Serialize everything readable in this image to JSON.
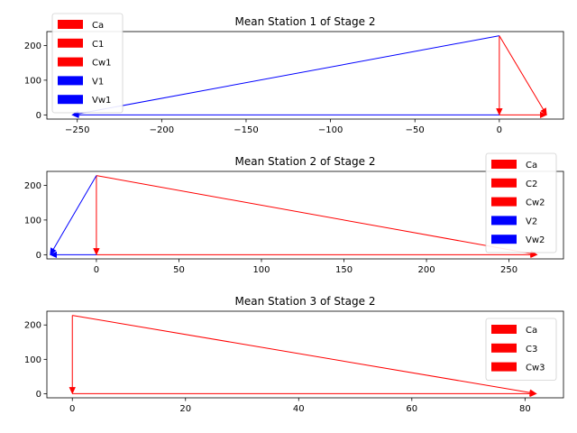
{
  "chart_data": [
    {
      "type": "line",
      "title": "Mean Station 1 of Stage 2",
      "xlim": [
        -268,
        38
      ],
      "ylim": [
        -12,
        240
      ],
      "xticks": [
        -250,
        -200,
        -150,
        -100,
        -50,
        0
      ],
      "yticks": [
        0,
        100,
        200
      ],
      "legend_position": "top-left",
      "series": [
        {
          "name": "Ca",
          "color": "#ff0000",
          "from": [
            0,
            0
          ],
          "to": [
            28,
            0
          ],
          "arrow": true
        },
        {
          "name": "C1",
          "color": "#ff0000",
          "from": [
            0,
            228
          ],
          "to": [
            28,
            0
          ],
          "arrow": true
        },
        {
          "name": "Cw1",
          "color": "#ff0000",
          "from": [
            0,
            228
          ],
          "to": [
            0,
            0
          ],
          "arrow": true
        },
        {
          "name": "V1",
          "color": "#0000ff",
          "from": [
            0,
            228
          ],
          "to": [
            -253,
            0
          ],
          "arrow": true
        },
        {
          "name": "Vw1",
          "color": "#0000ff",
          "from": [
            0,
            0
          ],
          "to": [
            -253,
            0
          ],
          "arrow": true
        }
      ]
    },
    {
      "type": "line",
      "title": "Mean Station 2 of Stage 2",
      "xlim": [
        -30,
        283
      ],
      "ylim": [
        -12,
        240
      ],
      "xticks": [
        0,
        50,
        100,
        150,
        200,
        250
      ],
      "yticks": [
        0,
        100,
        200
      ],
      "legend_position": "top-right",
      "series": [
        {
          "name": "Ca",
          "color": "#ff0000",
          "from": [
            0,
            0
          ],
          "to": [
            267,
            0
          ],
          "arrow": true
        },
        {
          "name": "C2",
          "color": "#ff0000",
          "from": [
            0,
            228
          ],
          "to": [
            267,
            0
          ],
          "arrow": true
        },
        {
          "name": "Cw2",
          "color": "#ff0000",
          "from": [
            0,
            228
          ],
          "to": [
            0,
            0
          ],
          "arrow": true
        },
        {
          "name": "V2",
          "color": "#0000ff",
          "from": [
            0,
            228
          ],
          "to": [
            -28,
            0
          ],
          "arrow": true
        },
        {
          "name": "Vw2",
          "color": "#0000ff",
          "from": [
            0,
            0
          ],
          "to": [
            -28,
            0
          ],
          "arrow": true
        }
      ]
    },
    {
      "type": "line",
      "title": "Mean Station 3 of Stage 2",
      "xlim": [
        -4.5,
        86.8
      ],
      "ylim": [
        -12,
        240
      ],
      "xticks": [
        0,
        20,
        40,
        60,
        80
      ],
      "yticks": [
        0,
        100,
        200
      ],
      "legend_position": "top-right",
      "series": [
        {
          "name": "Ca",
          "color": "#ff0000",
          "from": [
            0,
            0
          ],
          "to": [
            82,
            0
          ],
          "arrow": true
        },
        {
          "name": "C3",
          "color": "#ff0000",
          "from": [
            0,
            228
          ],
          "to": [
            82,
            0
          ],
          "arrow": true
        },
        {
          "name": "Cw3",
          "color": "#ff0000",
          "from": [
            0,
            228
          ],
          "to": [
            0,
            0
          ],
          "arrow": true
        }
      ]
    }
  ]
}
